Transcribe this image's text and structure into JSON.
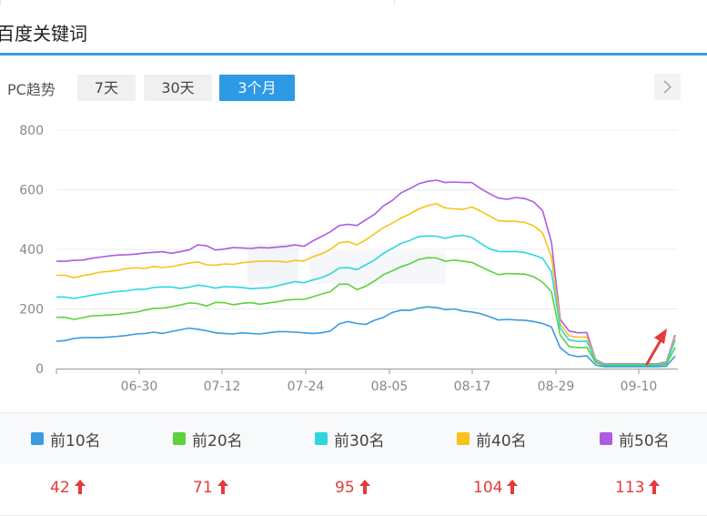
{
  "header": {
    "title": "百度关键词"
  },
  "controls": {
    "label": "PC趋势",
    "ranges": [
      "7天",
      "30天",
      "3个月"
    ],
    "active_index": 2
  },
  "colors": {
    "top10": "#3a9be1",
    "top20": "#5ed13c",
    "top30": "#2fd6e0",
    "top40": "#f9c21a",
    "top50": "#ad5be3",
    "accent": "#2d9ae6",
    "up": "#e43b3b",
    "arrow_annotation": "#e43b3b"
  },
  "chart_data": {
    "type": "line",
    "ylim": [
      0,
      800
    ],
    "yticks": [
      "0",
      "200",
      "400",
      "600",
      "800"
    ],
    "xtick_labels": [
      "06-30",
      "07-12",
      "07-24",
      "08-05",
      "08-17",
      "08-29",
      "09-10"
    ],
    "grid": true,
    "annotation": "upward red arrow near the last data points",
    "series": [
      {
        "name": "前10名",
        "key": "top10",
        "values": [
          92,
          94,
          101,
          104,
          104,
          104,
          106,
          108,
          111,
          116,
          118,
          122,
          118,
          124,
          130,
          136,
          132,
          127,
          120,
          118,
          116,
          120,
          118,
          116,
          120,
          124,
          124,
          122,
          120,
          118,
          120,
          126,
          150,
          158,
          151,
          148,
          162,
          172,
          188,
          196,
          195,
          203,
          207,
          205,
          198,
          200,
          193,
          190,
          184,
          174,
          163,
          165,
          163,
          162,
          158,
          151,
          140,
          70,
          46,
          40,
          43,
          12,
          6,
          6,
          6,
          6,
          6,
          6,
          6,
          8,
          42
        ]
      },
      {
        "name": "前20名",
        "key": "top20",
        "values": [
          172,
          172,
          165,
          171,
          177,
          178,
          180,
          182,
          186,
          189,
          196,
          202,
          203,
          207,
          213,
          220,
          218,
          210,
          222,
          221,
          214,
          219,
          221,
          216,
          220,
          224,
          230,
          232,
          232,
          241,
          250,
          258,
          283,
          283,
          265,
          276,
          294,
          315,
          328,
          342,
          352,
          366,
          372,
          371,
          360,
          364,
          360,
          356,
          342,
          328,
          315,
          319,
          318,
          317,
          308,
          290,
          258,
          112,
          74,
          70,
          71,
          20,
          10,
          10,
          10,
          10,
          10,
          10,
          10,
          14,
          71
        ]
      },
      {
        "name": "前30名",
        "key": "top30",
        "values": [
          240,
          240,
          235,
          241,
          246,
          251,
          255,
          259,
          261,
          266,
          266,
          272,
          274,
          274,
          269,
          273,
          280,
          276,
          270,
          275,
          274,
          272,
          268,
          270,
          271,
          278,
          285,
          292,
          288,
          297,
          305,
          318,
          337,
          339,
          332,
          348,
          364,
          387,
          403,
          420,
          430,
          443,
          445,
          444,
          437,
          444,
          447,
          440,
          420,
          402,
          393,
          392,
          393,
          389,
          381,
          370,
          325,
          136,
          96,
          91,
          92,
          24,
          13,
          13,
          13,
          13,
          13,
          13,
          13,
          17,
          95
        ]
      },
      {
        "name": "前40名",
        "key": "top40",
        "values": [
          313,
          313,
          305,
          312,
          317,
          324,
          326,
          330,
          336,
          338,
          336,
          343,
          339,
          342,
          348,
          354,
          358,
          348,
          347,
          351,
          350,
          355,
          358,
          360,
          360,
          360,
          357,
          363,
          361,
          375,
          385,
          400,
          422,
          426,
          415,
          432,
          452,
          473,
          488,
          505,
          519,
          536,
          547,
          553,
          539,
          536,
          534,
          542,
          528,
          512,
          496,
          494,
          494,
          490,
          479,
          455,
          375,
          150,
          110,
          105,
          106,
          27,
          14,
          14,
          14,
          14,
          14,
          14,
          14,
          19,
          104
        ]
      },
      {
        "name": "前50名",
        "key": "top50",
        "values": [
          360,
          360,
          363,
          364,
          370,
          374,
          378,
          381,
          382,
          384,
          388,
          390,
          392,
          387,
          392,
          398,
          415,
          412,
          398,
          401,
          406,
          405,
          403,
          406,
          405,
          408,
          410,
          415,
          410,
          428,
          443,
          459,
          480,
          484,
          480,
          499,
          518,
          546,
          564,
          590,
          604,
          620,
          628,
          632,
          624,
          626,
          624,
          624,
          604,
          587,
          572,
          568,
          574,
          570,
          559,
          530,
          425,
          165,
          126,
          120,
          121,
          30,
          16,
          16,
          16,
          16,
          16,
          16,
          16,
          22,
          113
        ]
      }
    ]
  },
  "summary": [
    {
      "key": "top10",
      "value": "42"
    },
    {
      "key": "top20",
      "value": "71"
    },
    {
      "key": "top30",
      "value": "95"
    },
    {
      "key": "top40",
      "value": "104"
    },
    {
      "key": "top50",
      "value": "113"
    }
  ]
}
